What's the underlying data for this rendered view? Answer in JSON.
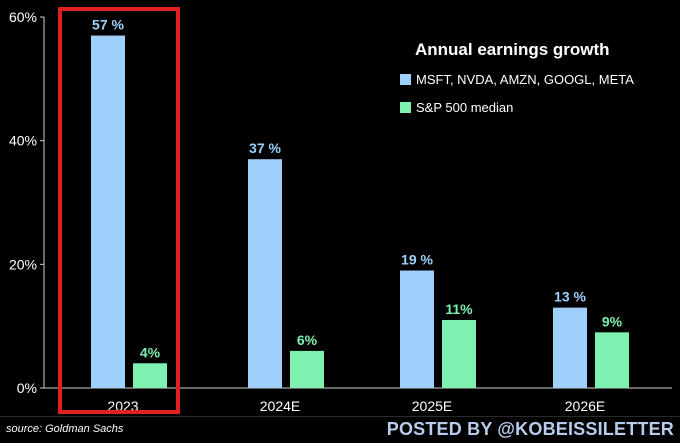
{
  "chart_data": {
    "type": "bar",
    "title": "Annual earnings growth",
    "categories": [
      "2023",
      "2024E",
      "2025E",
      "2026E"
    ],
    "series": [
      {
        "name": "MSFT, NVDA, AMZN, GOOGL, META",
        "values": [
          57,
          37,
          19,
          13
        ],
        "labels": [
          "57 %",
          "37 %",
          "19 %",
          "13 %"
        ],
        "color": "#9fd0fb"
      },
      {
        "name": "S&P 500 median",
        "values": [
          4,
          6,
          11,
          9
        ],
        "labels": [
          "4%",
          "6%",
          "11%",
          "9%"
        ],
        "color": "#7ef0b0"
      }
    ],
    "yticks": [
      0,
      20,
      40,
      60
    ],
    "yticklabels": [
      "0%",
      "20%",
      "40%",
      "60%"
    ],
    "ylim": [
      0,
      60
    ],
    "xlabel": "",
    "ylabel": "",
    "grid": false,
    "legend_position": "top-right",
    "highlight": {
      "category": "2023",
      "color": "#e32020"
    }
  },
  "footer": {
    "source": "source: Goldman Sachs",
    "posted": "POSTED BY @KOBEISSILETTER"
  }
}
